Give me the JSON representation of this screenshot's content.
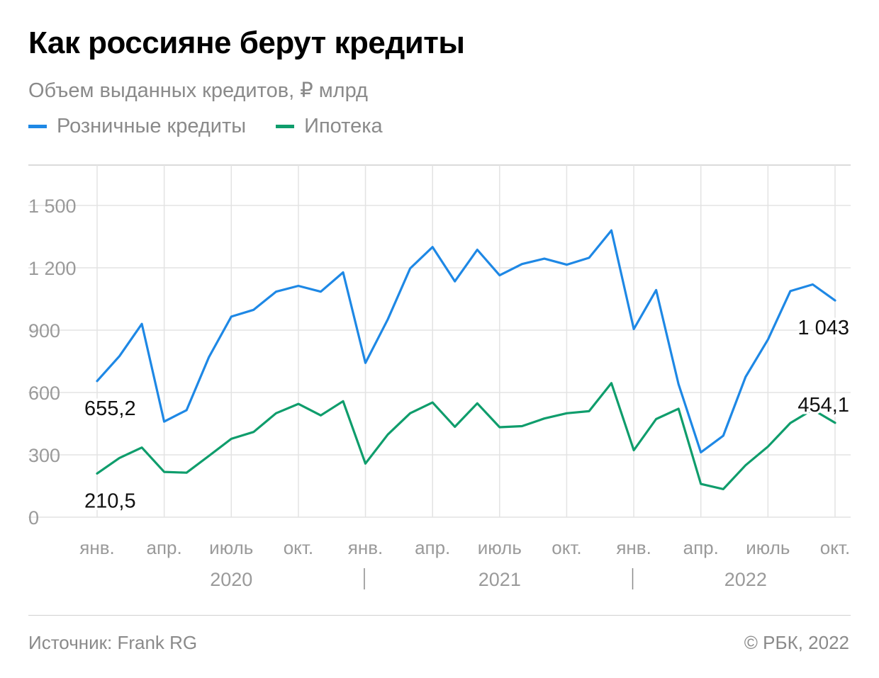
{
  "header": {
    "title": "Как россияне берут кредиты",
    "subtitle": "Объем выданных кредитов, ₽ млрд"
  },
  "footer": {
    "source": "Источник: Frank RG",
    "copyright": "© РБК, 2022"
  },
  "colors": {
    "retail": "#1E88E5",
    "mortgage": "#0F9D6C",
    "grid": "#e3e3e3",
    "axis_text": "#9a9a9a"
  },
  "chart_data": {
    "type": "line",
    "title": "Как россияне берут кредиты",
    "subtitle": "Объем выданных кредитов, ₽ млрд",
    "ylim": [
      0,
      1600
    ],
    "yticks": [
      0,
      300,
      600,
      900,
      1200,
      1500
    ],
    "ytick_labels": [
      "0",
      "300",
      "600",
      "900",
      "1 200",
      "1 500"
    ],
    "grid": true,
    "legend_position": "top-left",
    "x": [
      "2020-01",
      "2020-02",
      "2020-03",
      "2020-04",
      "2020-05",
      "2020-06",
      "2020-07",
      "2020-08",
      "2020-09",
      "2020-10",
      "2020-11",
      "2020-12",
      "2021-01",
      "2021-02",
      "2021-03",
      "2021-04",
      "2021-05",
      "2021-06",
      "2021-07",
      "2021-08",
      "2021-09",
      "2021-10",
      "2021-11",
      "2021-12",
      "2022-01",
      "2022-02",
      "2022-03",
      "2022-04",
      "2022-05",
      "2022-06",
      "2022-07",
      "2022-08",
      "2022-09",
      "2022-10"
    ],
    "xticks": [
      {
        "x": "2020-01",
        "label": "янв."
      },
      {
        "x": "2020-04",
        "label": "апр."
      },
      {
        "x": "2020-07",
        "label": "июль"
      },
      {
        "x": "2020-10",
        "label": "окт."
      },
      {
        "x": "2021-01",
        "label": "янв."
      },
      {
        "x": "2021-04",
        "label": "апр."
      },
      {
        "x": "2021-07",
        "label": "июль"
      },
      {
        "x": "2021-10",
        "label": "окт."
      },
      {
        "x": "2022-01",
        "label": "янв."
      },
      {
        "x": "2022-04",
        "label": "апр."
      },
      {
        "x": "2022-07",
        "label": "июль"
      },
      {
        "x": "2022-10",
        "label": "окт."
      }
    ],
    "years": [
      {
        "label": "2020",
        "x": "2020-07"
      },
      {
        "label": "2021",
        "x": "2021-07"
      },
      {
        "label": "2022",
        "x": "2022-06"
      }
    ],
    "year_separators": [
      "2021-01",
      "2022-01"
    ],
    "series": [
      {
        "name": "Розничные кредиты",
        "color": "#1E88E5",
        "values": [
          655.2,
          775,
          930,
          460,
          515,
          770,
          965,
          998,
          1085,
          1113,
          1085,
          1178,
          742,
          952,
          1197,
          1300,
          1135,
          1287,
          1164,
          1218,
          1244,
          1215,
          1248,
          1380,
          905,
          1093,
          640,
          312,
          392,
          675,
          855,
          1088,
          1120,
          1043
        ],
        "labels": [
          {
            "x": "2020-01",
            "text": "655,2",
            "position": "below"
          },
          {
            "x": "2022-10",
            "text": "1 043",
            "position": "below"
          }
        ]
      },
      {
        "name": "Ипотека",
        "color": "#0F9D6C",
        "values": [
          210.5,
          285,
          335,
          218,
          214,
          295,
          377,
          410,
          500,
          545,
          490,
          558,
          258,
          398,
          500,
          552,
          435,
          548,
          433,
          438,
          475,
          500,
          510,
          645,
          322,
          472,
          522,
          160,
          135,
          250,
          340,
          453,
          518,
          454.1
        ],
        "labels": [
          {
            "x": "2020-01",
            "text": "210,5",
            "position": "below"
          },
          {
            "x": "2022-10",
            "text": "454,1",
            "position": "above"
          }
        ]
      }
    ]
  }
}
